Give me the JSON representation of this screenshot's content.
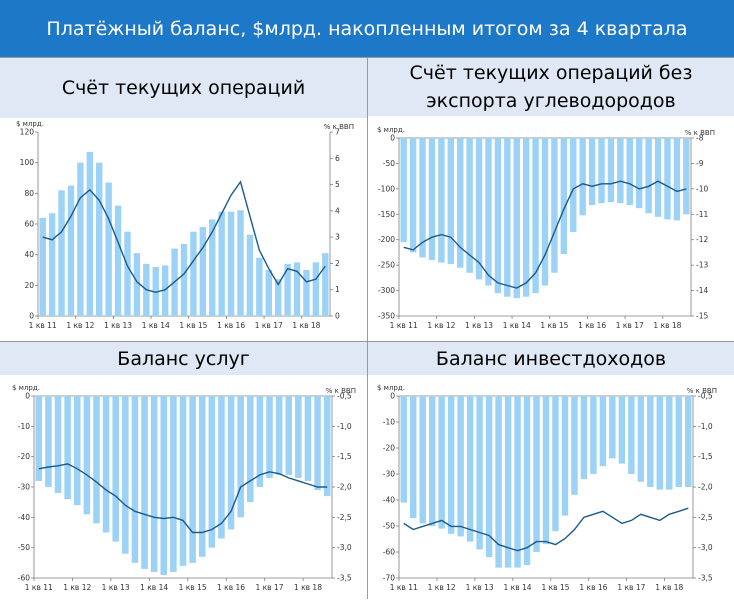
{
  "title": "Платёжный баланс, $млрд. накопленным итогом за 4 квартала",
  "colors": {
    "banner": "#1e78c8",
    "header": "#dfe8f4",
    "bar": "#9dd2f7",
    "line": "#1a5b8c",
    "axis": "#7f7f7f"
  },
  "x_ticks": [
    "1 кв 11",
    "1 кв 12",
    "1 кв 13",
    "1 кв 14",
    "1 кв 15",
    "1 кв 16",
    "1 кв 17",
    "1 кв 18"
  ],
  "chart_data": [
    {
      "type": "bar",
      "title": "Счёт текущих операций",
      "y_left_label": "$ млрд.",
      "y_right_label": "% к ВВП",
      "y_left_range": [
        0,
        120
      ],
      "y_left_ticks": [
        0,
        20,
        40,
        60,
        80,
        100,
        120
      ],
      "y_right_range": [
        0,
        7
      ],
      "y_right_ticks": [
        0,
        1,
        2,
        3,
        4,
        5,
        6,
        7
      ],
      "bars": [
        64,
        67,
        82,
        85,
        100,
        107,
        100,
        87,
        72,
        55,
        41,
        34,
        32,
        33,
        44,
        47,
        55,
        58,
        63,
        68,
        68,
        69,
        53,
        38,
        30,
        24,
        34,
        35,
        30,
        35,
        41
      ],
      "line": [
        3.0,
        2.9,
        3.2,
        3.8,
        4.5,
        4.8,
        4.4,
        3.7,
        2.8,
        1.9,
        1.3,
        1.0,
        0.9,
        1.0,
        1.3,
        1.6,
        2.1,
        2.6,
        3.2,
        3.9,
        4.6,
        5.1,
        3.8,
        2.5,
        1.8,
        1.2,
        1.8,
        1.7,
        1.3,
        1.4,
        1.9
      ]
    },
    {
      "type": "bar",
      "title": "Счёт текущих операций без экспорта углеводородов",
      "y_left_label": "$ млрд.",
      "y_right_label": "% к ВВП",
      "y_left_range": [
        -350,
        0
      ],
      "y_left_ticks": [
        0,
        -50,
        -100,
        -150,
        -200,
        -250,
        -300,
        -350
      ],
      "y_right_range": [
        -15,
        -8
      ],
      "y_right_ticks": [
        -8,
        -9,
        -10,
        -11,
        -12,
        -13,
        -14,
        -15
      ],
      "bars": [
        -205,
        -225,
        -235,
        -240,
        -245,
        -248,
        -255,
        -265,
        -278,
        -290,
        -305,
        -312,
        -315,
        -312,
        -305,
        -290,
        -265,
        -228,
        -185,
        -152,
        -132,
        -128,
        -126,
        -128,
        -132,
        -138,
        -148,
        -155,
        -160,
        -162,
        -150
      ],
      "line": [
        -12.3,
        -12.4,
        -12.1,
        -11.9,
        -11.8,
        -11.9,
        -12.3,
        -12.6,
        -12.9,
        -13.4,
        -13.7,
        -13.8,
        -13.9,
        -13.7,
        -13.3,
        -12.6,
        -11.7,
        -10.8,
        -10.0,
        -9.8,
        -9.9,
        -9.8,
        -9.8,
        -9.7,
        -9.8,
        -10.0,
        -9.9,
        -9.7,
        -9.9,
        -10.1,
        -10.0
      ]
    },
    {
      "type": "bar",
      "title": "Баланс услуг",
      "y_left_label": "$ млрд.",
      "y_right_label": "% к ВВП",
      "y_left_range": [
        -60,
        0
      ],
      "y_left_ticks": [
        0,
        -10,
        -20,
        -30,
        -40,
        -50,
        -60
      ],
      "y_right_range": [
        -3.5,
        -0.5
      ],
      "y_right_ticks": [
        -0.5,
        -1.0,
        -1.5,
        -2.0,
        -2.5,
        -3.0,
        -3.5
      ],
      "bars": [
        -28,
        -30,
        -32,
        -34,
        -36,
        -39,
        -42,
        -45,
        -48,
        -52,
        -55,
        -57,
        -58,
        -59,
        -58,
        -56,
        -55,
        -53,
        -50,
        -47,
        -44,
        -40,
        -35,
        -30,
        -27,
        -26,
        -26,
        -27,
        -28,
        -31,
        -33
      ],
      "line": [
        -1.7,
        -1.67,
        -1.65,
        -1.62,
        -1.7,
        -1.8,
        -1.92,
        -2.05,
        -2.15,
        -2.3,
        -2.4,
        -2.45,
        -2.5,
        -2.52,
        -2.5,
        -2.55,
        -2.75,
        -2.75,
        -2.7,
        -2.6,
        -2.4,
        -2.0,
        -1.9,
        -1.8,
        -1.75,
        -1.78,
        -1.85,
        -1.9,
        -1.95,
        -2.0,
        -2.0
      ]
    },
    {
      "type": "bar",
      "title": "Баланс инвестдоходов",
      "y_left_label": "$ млрд.",
      "y_right_label": "% к ВВП",
      "y_left_range": [
        -70,
        0
      ],
      "y_left_ticks": [
        0,
        -10,
        -20,
        -30,
        -40,
        -50,
        -60,
        -70
      ],
      "y_right_range": [
        -3.5,
        -0.5
      ],
      "y_right_ticks": [
        -0.5,
        -1.0,
        -1.5,
        -2.0,
        -2.5,
        -3.0,
        -3.5
      ],
      "bars": [
        -41,
        -47,
        -49,
        -50,
        -51,
        -53,
        -54,
        -56,
        -59,
        -62,
        -66,
        -66,
        -66,
        -65,
        -60,
        -57,
        -52,
        -46,
        -38,
        -32,
        -30,
        -27,
        -24,
        -26,
        -30,
        -33,
        -35,
        -36,
        -36,
        -35,
        -35
      ],
      "line": [
        -2.6,
        -2.7,
        -2.65,
        -2.6,
        -2.55,
        -2.65,
        -2.65,
        -2.7,
        -2.75,
        -2.8,
        -2.95,
        -3.0,
        -3.05,
        -3.0,
        -2.9,
        -2.9,
        -2.95,
        -2.85,
        -2.7,
        -2.5,
        -2.45,
        -2.4,
        -2.5,
        -2.6,
        -2.55,
        -2.45,
        -2.5,
        -2.55,
        -2.45,
        -2.4,
        -2.35
      ]
    }
  ]
}
